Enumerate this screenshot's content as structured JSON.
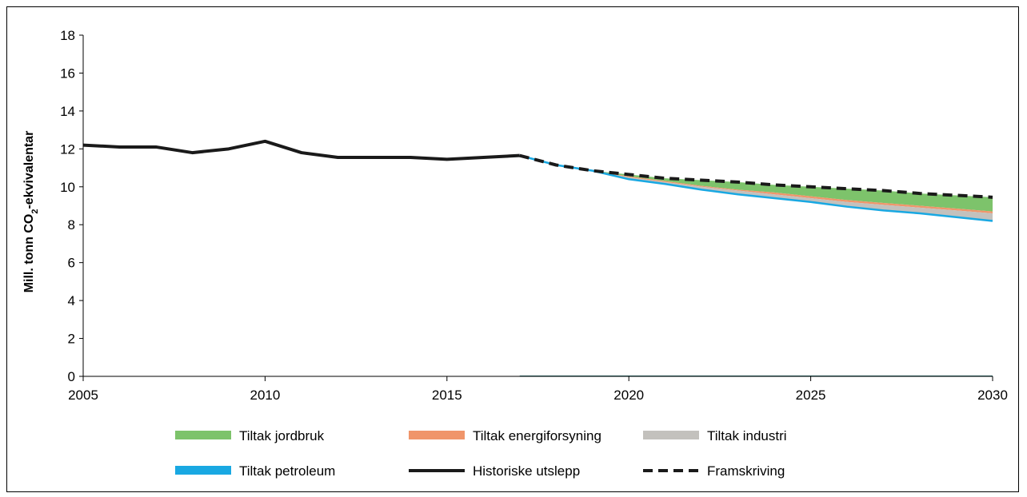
{
  "chart_data": {
    "type": "area",
    "title": "",
    "ylabel": {
      "pre": "Mill. tonn CO",
      "sub": "2",
      "post": "-ekvivalentar"
    },
    "xlabel": "",
    "xlim": [
      2005,
      2030
    ],
    "ylim": [
      0,
      18
    ],
    "xticks": [
      "2005",
      "2010",
      "2015",
      "2020",
      "2025",
      "2030"
    ],
    "yticks": [
      "0",
      "2",
      "4",
      "6",
      "8",
      "10",
      "12",
      "14",
      "16",
      "18"
    ],
    "grid": false,
    "legend_position": "bottom",
    "colors": {
      "jordbruk": "#7dc36b",
      "energiforsyning": "#f0956a",
      "industri": "#c3c1bd",
      "petroleum": "#19a8e2",
      "historiske": "#1a1a1a",
      "framskriving": "#1a1a1a"
    },
    "series": [
      {
        "name": "Historiske utslepp",
        "x": [
          2005,
          2006,
          2007,
          2008,
          2009,
          2010,
          2011,
          2012,
          2013,
          2014,
          2015,
          2016,
          2017
        ],
        "y": [
          12.2,
          12.1,
          12.1,
          11.8,
          12.0,
          12.4,
          11.8,
          11.55,
          11.55,
          11.55,
          11.45,
          11.55,
          11.65
        ]
      },
      {
        "name": "Framskriving",
        "x": [
          2017,
          2018,
          2019,
          2020,
          2021,
          2022,
          2023,
          2024,
          2025,
          2026,
          2027,
          2028,
          2029,
          2030
        ],
        "y": [
          11.65,
          11.15,
          10.85,
          10.65,
          10.45,
          10.35,
          10.25,
          10.1,
          10.0,
          9.9,
          9.8,
          9.65,
          9.55,
          9.45
        ]
      },
      {
        "name": "Tiltak jordbruk",
        "x": [
          2017,
          2018,
          2019,
          2020,
          2021,
          2022,
          2023,
          2024,
          2025,
          2026,
          2027,
          2028,
          2029,
          2030
        ],
        "lower": [
          11.65,
          11.15,
          10.85,
          10.55,
          10.3,
          10.05,
          9.85,
          9.7,
          9.5,
          9.3,
          9.15,
          9.0,
          8.85,
          8.7
        ],
        "upper": [
          11.65,
          11.15,
          10.85,
          10.65,
          10.45,
          10.35,
          10.25,
          10.1,
          10.0,
          9.9,
          9.8,
          9.65,
          9.55,
          9.45
        ]
      },
      {
        "name": "Tiltak energiforsyning",
        "x": [
          2017,
          2018,
          2019,
          2020,
          2021,
          2022,
          2023,
          2024,
          2025,
          2026,
          2027,
          2028,
          2029,
          2030
        ],
        "lower": [
          11.65,
          11.15,
          10.85,
          10.5,
          10.25,
          10.0,
          9.8,
          9.6,
          9.4,
          9.2,
          9.05,
          8.9,
          8.75,
          8.6
        ],
        "upper": [
          11.65,
          11.15,
          10.85,
          10.55,
          10.3,
          10.05,
          9.85,
          9.7,
          9.5,
          9.3,
          9.15,
          9.0,
          8.85,
          8.7
        ]
      },
      {
        "name": "Tiltak industri",
        "x": [
          2017,
          2018,
          2019,
          2020,
          2021,
          2022,
          2023,
          2024,
          2025,
          2026,
          2027,
          2028,
          2029,
          2030
        ],
        "lower": [
          11.65,
          11.15,
          10.85,
          10.4,
          10.15,
          9.85,
          9.6,
          9.4,
          9.2,
          8.95,
          8.75,
          8.6,
          8.4,
          8.2
        ],
        "upper": [
          11.65,
          11.15,
          10.85,
          10.5,
          10.25,
          10.0,
          9.8,
          9.6,
          9.4,
          9.2,
          9.05,
          8.9,
          8.75,
          8.6
        ]
      },
      {
        "name": "Tiltak petroleum",
        "x": [
          2017,
          2018,
          2019,
          2020,
          2021,
          2022,
          2023,
          2024,
          2025,
          2026,
          2027,
          2028,
          2029,
          2030
        ],
        "y": [
          11.65,
          11.15,
          10.85,
          10.4,
          10.15,
          9.85,
          9.6,
          9.4,
          9.2,
          8.95,
          8.75,
          8.6,
          8.4,
          8.2
        ]
      }
    ],
    "legend": [
      {
        "key": "jordbruk",
        "label": "Tiltak jordbruk",
        "style": "patch"
      },
      {
        "key": "energiforsyning",
        "label": "Tiltak energiforsyning",
        "style": "patch"
      },
      {
        "key": "industri",
        "label": "Tiltak industri",
        "style": "patch"
      },
      {
        "key": "petroleum",
        "label": "Tiltak petroleum",
        "style": "patch"
      },
      {
        "key": "historiske",
        "label": "Historiske utslepp",
        "style": "line"
      },
      {
        "key": "framskriving",
        "label": "Framskriving",
        "style": "dash"
      }
    ]
  }
}
